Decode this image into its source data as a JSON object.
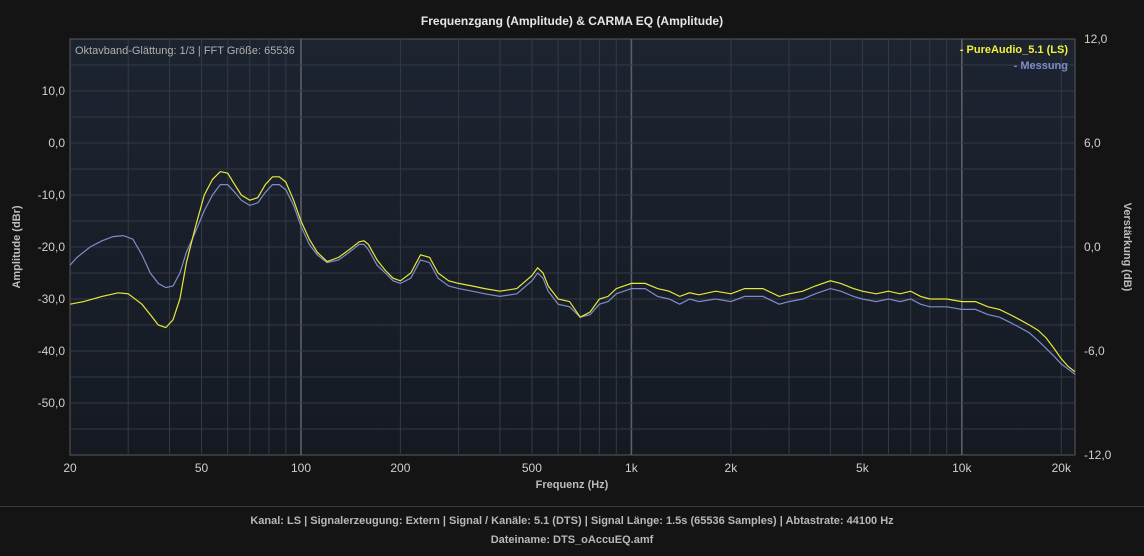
{
  "chart_data": {
    "type": "line",
    "title": "Frequenzgang (Amplitude) & CARMA EQ (Amplitude)",
    "xlabel": "Frequenz (Hz)",
    "ylabel": "Amplitude (dBr)",
    "y2label": "Verstärkung (dB)",
    "x_scale": "log",
    "xlim": [
      20,
      22000
    ],
    "ylim": [
      -60,
      20
    ],
    "y2lim": [
      -12,
      12
    ],
    "x_ticks": [
      {
        "v": 20,
        "label": "20"
      },
      {
        "v": 50,
        "label": "50"
      },
      {
        "v": 100,
        "label": "100"
      },
      {
        "v": 200,
        "label": "200"
      },
      {
        "v": 500,
        "label": "500"
      },
      {
        "v": 1000,
        "label": "1k"
      },
      {
        "v": 2000,
        "label": "2k"
      },
      {
        "v": 5000,
        "label": "5k"
      },
      {
        "v": 10000,
        "label": "10k"
      },
      {
        "v": 20000,
        "label": "20k"
      }
    ],
    "y_ticks": [
      {
        "v": 10,
        "label": "10,0"
      },
      {
        "v": 0,
        "label": "0,0"
      },
      {
        "v": -10,
        "label": "-10,0"
      },
      {
        "v": -20,
        "label": "-20,0"
      },
      {
        "v": -30,
        "label": "-30,0"
      },
      {
        "v": -40,
        "label": "-40,0"
      },
      {
        "v": -50,
        "label": "-50,0"
      }
    ],
    "y2_ticks": [
      {
        "v": 12,
        "label": "12,0"
      },
      {
        "v": 6,
        "label": "6,0"
      },
      {
        "v": 0,
        "label": "0,0"
      },
      {
        "v": -6,
        "label": "-6,0"
      },
      {
        "v": -12,
        "label": "-12,0"
      }
    ],
    "grid": true,
    "legend_position": "top-right",
    "annotation": "Oktavband-Glättung: 1/3 | FFT Größe: 65536",
    "series": [
      {
        "name": "- PureAudio_5.1 (LS)",
        "color": "#e8e83a",
        "x": [
          20,
          22,
          25,
          28,
          30,
          33,
          35,
          37,
          39,
          41,
          43,
          45,
          48,
          51,
          54,
          57,
          60,
          63,
          66,
          70,
          74,
          78,
          82,
          86,
          90,
          95,
          100,
          106,
          112,
          120,
          130,
          140,
          150,
          155,
          160,
          170,
          180,
          190,
          200,
          215,
          230,
          245,
          260,
          280,
          300,
          330,
          360,
          400,
          450,
          500,
          520,
          540,
          560,
          600,
          650,
          700,
          750,
          800,
          850,
          900,
          1000,
          1100,
          1200,
          1300,
          1400,
          1500,
          1600,
          1800,
          2000,
          2200,
          2500,
          2800,
          3000,
          3300,
          3600,
          4000,
          4300,
          4700,
          5000,
          5500,
          6000,
          6500,
          7000,
          7500,
          8000,
          9000,
          10000,
          11000,
          12000,
          13000,
          14000,
          15000,
          16000,
          17000,
          18000,
          19000,
          20000,
          21000,
          22000
        ],
        "y": [
          -31,
          -30.5,
          -29.5,
          -28.8,
          -29,
          -31,
          -33,
          -35,
          -35.5,
          -34,
          -30,
          -23,
          -16,
          -10,
          -7,
          -5.5,
          -5.8,
          -8,
          -10,
          -11,
          -10.5,
          -8,
          -6.5,
          -6.5,
          -7.5,
          -11,
          -15,
          -18.5,
          -21,
          -22.8,
          -22,
          -20.5,
          -19,
          -18.8,
          -19.5,
          -22.5,
          -24.5,
          -26,
          -26.5,
          -25,
          -21.5,
          -22,
          -25,
          -26.5,
          -27,
          -27.5,
          -28,
          -28.5,
          -28,
          -25.5,
          -24,
          -25,
          -27.5,
          -30,
          -30.5,
          -33.5,
          -32.5,
          -30,
          -29.5,
          -28,
          -27,
          -27,
          -28,
          -28.5,
          -29.5,
          -28.8,
          -29.2,
          -28.5,
          -29,
          -28,
          -28,
          -29.5,
          -29,
          -28.5,
          -27.5,
          -26.5,
          -27,
          -28,
          -28.5,
          -29,
          -28.5,
          -29,
          -28.5,
          -29.5,
          -30,
          -30,
          -30.5,
          -30.5,
          -31.5,
          -32,
          -33,
          -34,
          -35,
          -36,
          -37.5,
          -39.5,
          -41.5,
          -43,
          -44
        ]
      },
      {
        "name": "- Messung",
        "color": "#7d8cc8",
        "x": [
          20,
          21,
          23,
          25,
          27,
          29,
          31,
          33,
          35,
          37,
          39,
          41,
          43,
          45,
          48,
          51,
          54,
          57,
          60,
          63,
          66,
          70,
          74,
          78,
          82,
          86,
          90,
          95,
          100,
          106,
          112,
          120,
          130,
          140,
          150,
          155,
          160,
          170,
          180,
          190,
          200,
          215,
          230,
          245,
          260,
          280,
          300,
          330,
          360,
          400,
          450,
          500,
          520,
          540,
          560,
          600,
          650,
          700,
          750,
          800,
          850,
          900,
          1000,
          1100,
          1200,
          1300,
          1400,
          1500,
          1600,
          1800,
          2000,
          2200,
          2500,
          2800,
          3000,
          3300,
          3600,
          4000,
          4300,
          4700,
          5000,
          5500,
          6000,
          6500,
          7000,
          7500,
          8000,
          9000,
          10000,
          11000,
          12000,
          13000,
          14000,
          15000,
          16000,
          17000,
          18000,
          19000,
          20000,
          21000,
          22000
        ],
        "y": [
          -23.5,
          -22,
          -20,
          -18.8,
          -18,
          -17.8,
          -18.5,
          -21.5,
          -25,
          -27,
          -27.8,
          -27.5,
          -25,
          -21,
          -17,
          -13,
          -10,
          -8,
          -8,
          -9.5,
          -11,
          -12,
          -11.5,
          -9.5,
          -8,
          -8,
          -9,
          -12,
          -16,
          -19.5,
          -21.5,
          -23,
          -22.5,
          -21,
          -19.5,
          -19.5,
          -20.5,
          -23.5,
          -25,
          -26.5,
          -27,
          -26,
          -22.5,
          -23,
          -26,
          -27.5,
          -28,
          -28.5,
          -29,
          -29.5,
          -29,
          -26.5,
          -25,
          -26,
          -28.5,
          -31,
          -31.5,
          -33.5,
          -33,
          -31,
          -30.5,
          -29,
          -28,
          -28,
          -29.5,
          -30,
          -31,
          -30,
          -30.5,
          -30,
          -30.5,
          -29.5,
          -29.5,
          -31,
          -30.5,
          -30,
          -29,
          -28,
          -28.5,
          -29.5,
          -30,
          -30.5,
          -30,
          -30.5,
          -30,
          -31,
          -31.5,
          -31.5,
          -32,
          -32,
          -33,
          -33.5,
          -34.5,
          -35.5,
          -36.5,
          -38,
          -39.5,
          -41,
          -42.5,
          -43.5,
          -44.5
        ]
      }
    ]
  },
  "footer": {
    "line1": "Kanal: LS  |  Signalerzeugung: Extern   |  Signal / Kanäle: 5.1 (DTS)  |  Signal Länge: 1.5s (65536 Samples)  |  Abtastrate: 44100 Hz",
    "line2": "Dateiname: DTS_oAccuEQ.amf"
  }
}
